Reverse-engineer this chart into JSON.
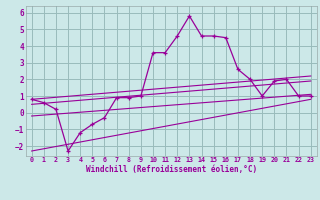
{
  "xlabel": "Windchill (Refroidissement éolien,°C)",
  "background_color": "#cce8e8",
  "line_color": "#990099",
  "grid_color": "#99bbbb",
  "xlim": [
    -0.5,
    23.5
  ],
  "ylim": [
    -2.6,
    6.4
  ],
  "yticks": [
    -2,
    -1,
    0,
    1,
    2,
    3,
    4,
    5,
    6
  ],
  "xticks": [
    0,
    1,
    2,
    3,
    4,
    5,
    6,
    7,
    8,
    9,
    10,
    11,
    12,
    13,
    14,
    15,
    16,
    17,
    18,
    19,
    20,
    21,
    22,
    23
  ],
  "main_x": [
    0,
    1,
    2,
    3,
    4,
    5,
    6,
    7,
    8,
    9,
    10,
    11,
    12,
    13,
    14,
    15,
    16,
    17,
    18,
    19,
    20,
    21,
    22,
    23
  ],
  "main_y": [
    0.8,
    0.6,
    0.2,
    -2.3,
    -1.2,
    -0.7,
    -0.3,
    0.9,
    0.9,
    1.0,
    3.6,
    3.6,
    4.6,
    5.8,
    4.6,
    4.6,
    4.5,
    2.6,
    2.0,
    1.0,
    1.9,
    2.0,
    1.0,
    1.0
  ],
  "line1_x": [
    0,
    23
  ],
  "line1_y": [
    0.8,
    2.2
  ],
  "line2_x": [
    0,
    23
  ],
  "line2_y": [
    0.5,
    1.9
  ],
  "line3_x": [
    0,
    23
  ],
  "line3_y": [
    -0.2,
    1.1
  ],
  "line4_x": [
    0,
    23
  ],
  "line4_y": [
    -2.3,
    0.8
  ]
}
